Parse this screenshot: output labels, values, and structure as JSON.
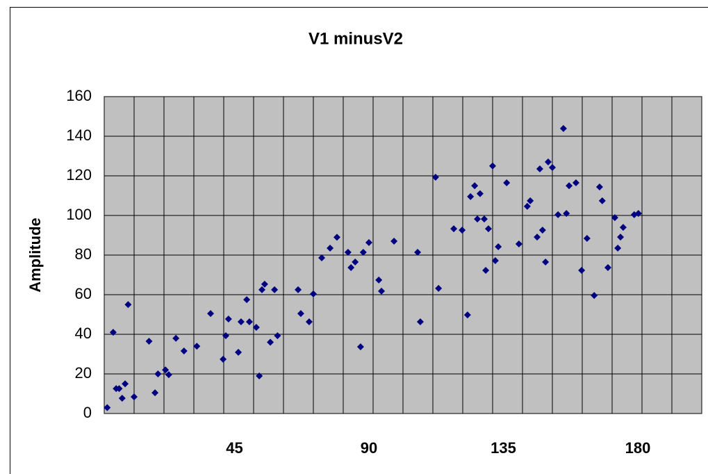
{
  "chart_data": {
    "type": "scatter",
    "title": "V1 minusV2",
    "y_label": "Amplitude",
    "xlim": [
      0,
      200
    ],
    "xticks": [
      45,
      90,
      135,
      180
    ],
    "xgrid": [
      10,
      20,
      30,
      40,
      50,
      60,
      70,
      80,
      90,
      100,
      110,
      120,
      130,
      140,
      150,
      160,
      170,
      180,
      190
    ],
    "ylim": [
      0,
      160
    ],
    "yticks": [
      0,
      20,
      40,
      60,
      80,
      100,
      120,
      140,
      160
    ],
    "grid": true,
    "series": [
      {
        "name": "V1 minusV2",
        "color": "#000080",
        "x": [
          1,
          3,
          4,
          5,
          6,
          7,
          8,
          10,
          15,
          17,
          18,
          20.5,
          21.6,
          24,
          26.7,
          31,
          35.6,
          39.8,
          40.7,
          41.6,
          44.9,
          45.8,
          47.7,
          48.6,
          50.9,
          51.9,
          52.8,
          53.7,
          55.6,
          57,
          58,
          64.9,
          65.8,
          68.6,
          70,
          72.8,
          75.6,
          77.9,
          81.6,
          82.6,
          84,
          85.8,
          86.7,
          88.6,
          91.9,
          92.8,
          97,
          104.9,
          105.8,
          110.9,
          111.9,
          117,
          119.8,
          121.6,
          122.6,
          124,
          124.9,
          125.8,
          127.2,
          127.7,
          128.6,
          130,
          130.9,
          131.9,
          134.7,
          138.8,
          141.6,
          142.6,
          144.9,
          145.8,
          146.7,
          147.7,
          148.6,
          150,
          151.9,
          153.7,
          154.7,
          155.6,
          157.9,
          159.8,
          161.6,
          164,
          165.8,
          166.7,
          168.6,
          170.9,
          171.9,
          172.8,
          173.7,
          177.4,
          178.8
        ],
        "values": [
          3,
          41,
          12.6,
          12.6,
          7.7,
          15,
          55,
          8.4,
          36.5,
          10.5,
          20,
          22,
          19.6,
          38,
          31.6,
          34,
          50.5,
          27.4,
          39.3,
          47.7,
          30.9,
          46.3,
          57.5,
          46.3,
          43.5,
          19,
          62.5,
          65.3,
          36,
          62.5,
          39.3,
          62.5,
          50.5,
          46.3,
          60.4,
          78.6,
          83.5,
          89,
          81.4,
          73.7,
          76.5,
          33.7,
          81.4,
          86.3,
          67.4,
          61.8,
          87,
          81.4,
          46.3,
          119.3,
          63.2,
          93.3,
          92.6,
          49.8,
          109.5,
          115,
          98.2,
          111,
          98.2,
          72.3,
          93.3,
          125,
          77.2,
          84.2,
          116.5,
          85.6,
          104.6,
          107.4,
          89.1,
          123.5,
          92.6,
          76.5,
          127,
          124.2,
          100.4,
          143.9,
          101,
          115,
          116.5,
          72.3,
          88.4,
          59.6,
          114.4,
          107.4,
          73.7,
          98.9,
          83.5,
          89.1,
          94,
          100.4,
          101
        ]
      }
    ]
  }
}
